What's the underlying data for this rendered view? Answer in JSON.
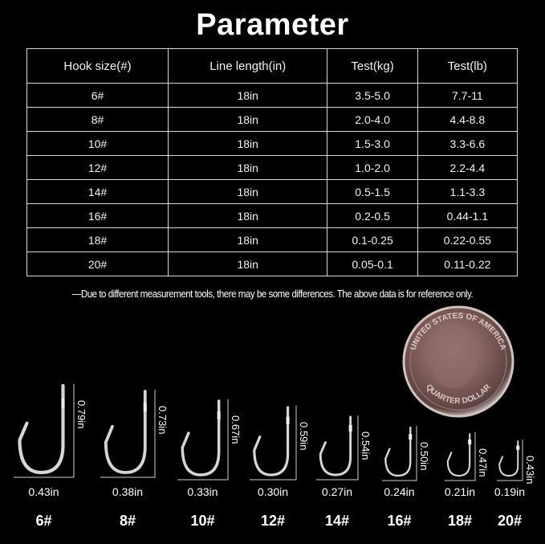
{
  "title": "Parameter",
  "table": {
    "headers": [
      "Hook size(#)",
      "Line length(in)",
      "Test(kg)",
      "Test(lb)"
    ],
    "rows": [
      [
        "6#",
        "18in",
        "3.5-5.0",
        "7.7-11"
      ],
      [
        "8#",
        "18in",
        "2.0-4.0",
        "4.4-8.8"
      ],
      [
        "10#",
        "18in",
        "1.5-3.0",
        "3.3-6.6"
      ],
      [
        "12#",
        "18in",
        "1.0-2.0",
        "2.2-4.4"
      ],
      [
        "14#",
        "18in",
        "0.5-1.5",
        "1.1-3.3"
      ],
      [
        "16#",
        "18in",
        "0.2-0.5",
        "0.44-1.1"
      ],
      [
        "18#",
        "18in",
        "0.1-0.25",
        "0.22-0.55"
      ],
      [
        "20#",
        "18in",
        "0.05-0.1",
        "0.11-0.22"
      ]
    ]
  },
  "note": "—Due to different measurement tools, there may be some differences. The above data is for reference only.",
  "coin": {
    "top_text": "UNITED STATES OF AMERICA",
    "bottom_text": "QUARTER DOLLAR"
  },
  "hooks": [
    {
      "size": "6#",
      "height": "0.79in",
      "width": "0.43in"
    },
    {
      "size": "8#",
      "height": "0.73in",
      "width": "0.38in"
    },
    {
      "size": "10#",
      "height": "0.67in",
      "width": "0.33in"
    },
    {
      "size": "12#",
      "height": "0.59in",
      "width": "0.30in"
    },
    {
      "size": "14#",
      "height": "0.54in",
      "width": "0.27in"
    },
    {
      "size": "16#",
      "height": "0.50in",
      "width": "0.24in"
    },
    {
      "size": "18#",
      "height": "0.47in",
      "width": "0.21in"
    },
    {
      "size": "20#",
      "height": "0.43in",
      "width": "0.19in"
    }
  ]
}
